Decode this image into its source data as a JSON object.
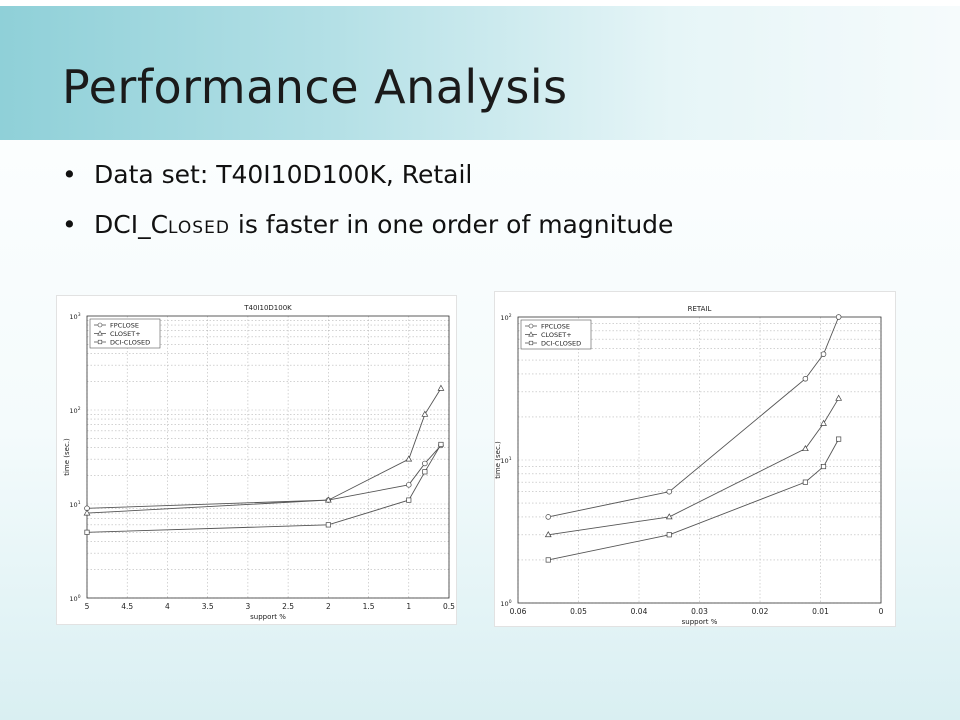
{
  "slide": {
    "title": "Performance Analysis",
    "bullets": [
      {
        "text": "Data set: T40I10D100K, Retail"
      },
      {
        "pre": "DCI_C",
        "smallcaps": "LOSED",
        "post": " is faster  in one order of magnitude"
      }
    ]
  },
  "chart_data": [
    {
      "type": "line",
      "title": "T40I10D100K",
      "xlabel": "support %",
      "ylabel": "time (sec.)",
      "xlim": [
        5,
        0.5
      ],
      "x_reversed": true,
      "ylim": [
        1,
        1000
      ],
      "yscale": "log",
      "grid": true,
      "legend": "top-left",
      "xticks": [
        5,
        4.5,
        4,
        3.5,
        3,
        2.5,
        2,
        1.5,
        1,
        0.5
      ],
      "xtick_labels": [
        "5",
        "4.5",
        "4",
        "3.5",
        "3",
        "2.5",
        "2",
        "1.5",
        "1",
        "0.5"
      ],
      "yticks": [
        1,
        10,
        100,
        1000
      ],
      "ytick_bases": [
        "10",
        "10",
        "10",
        "10"
      ],
      "ytick_exps": [
        "0",
        "1",
        "2",
        "3"
      ],
      "x": [
        5,
        2,
        1,
        0.8,
        0.6
      ],
      "series": [
        {
          "name": "FPCLOSE",
          "marker": "circle",
          "values": [
            9,
            11,
            16,
            27,
            42
          ]
        },
        {
          "name": "CLOSET+",
          "marker": "triangle",
          "values": [
            8,
            11,
            30,
            90,
            170
          ]
        },
        {
          "name": "DCI-CLOSED",
          "marker": "square",
          "values": [
            5,
            6,
            11,
            22,
            43
          ]
        }
      ]
    },
    {
      "type": "line",
      "title": "RETAIL",
      "xlabel": "support %",
      "ylabel": "time (sec.)",
      "xlim": [
        0.06,
        0
      ],
      "x_reversed": true,
      "ylim": [
        1,
        100
      ],
      "yscale": "log",
      "grid": true,
      "legend": "top-left",
      "xticks": [
        0.06,
        0.05,
        0.04,
        0.03,
        0.02,
        0.01,
        0
      ],
      "xtick_labels": [
        "0.06",
        "0.05",
        "0.04",
        "0.03",
        "0.02",
        "0.01",
        "0"
      ],
      "yticks": [
        1,
        10,
        100
      ],
      "ytick_bases": [
        "10",
        "10",
        "10"
      ],
      "ytick_exps": [
        "0",
        "1",
        "2"
      ],
      "x": [
        0.055,
        0.035,
        0.0125,
        0.0095,
        0.007
      ],
      "series": [
        {
          "name": "FPCLOSE",
          "marker": "circle",
          "values": [
            4,
            6,
            37,
            55,
            100
          ]
        },
        {
          "name": "CLOSET+",
          "marker": "triangle",
          "values": [
            3,
            4,
            12,
            18,
            27
          ]
        },
        {
          "name": "DCI-CLOSED",
          "marker": "square",
          "values": [
            2,
            3,
            7,
            9,
            14
          ]
        }
      ]
    }
  ]
}
